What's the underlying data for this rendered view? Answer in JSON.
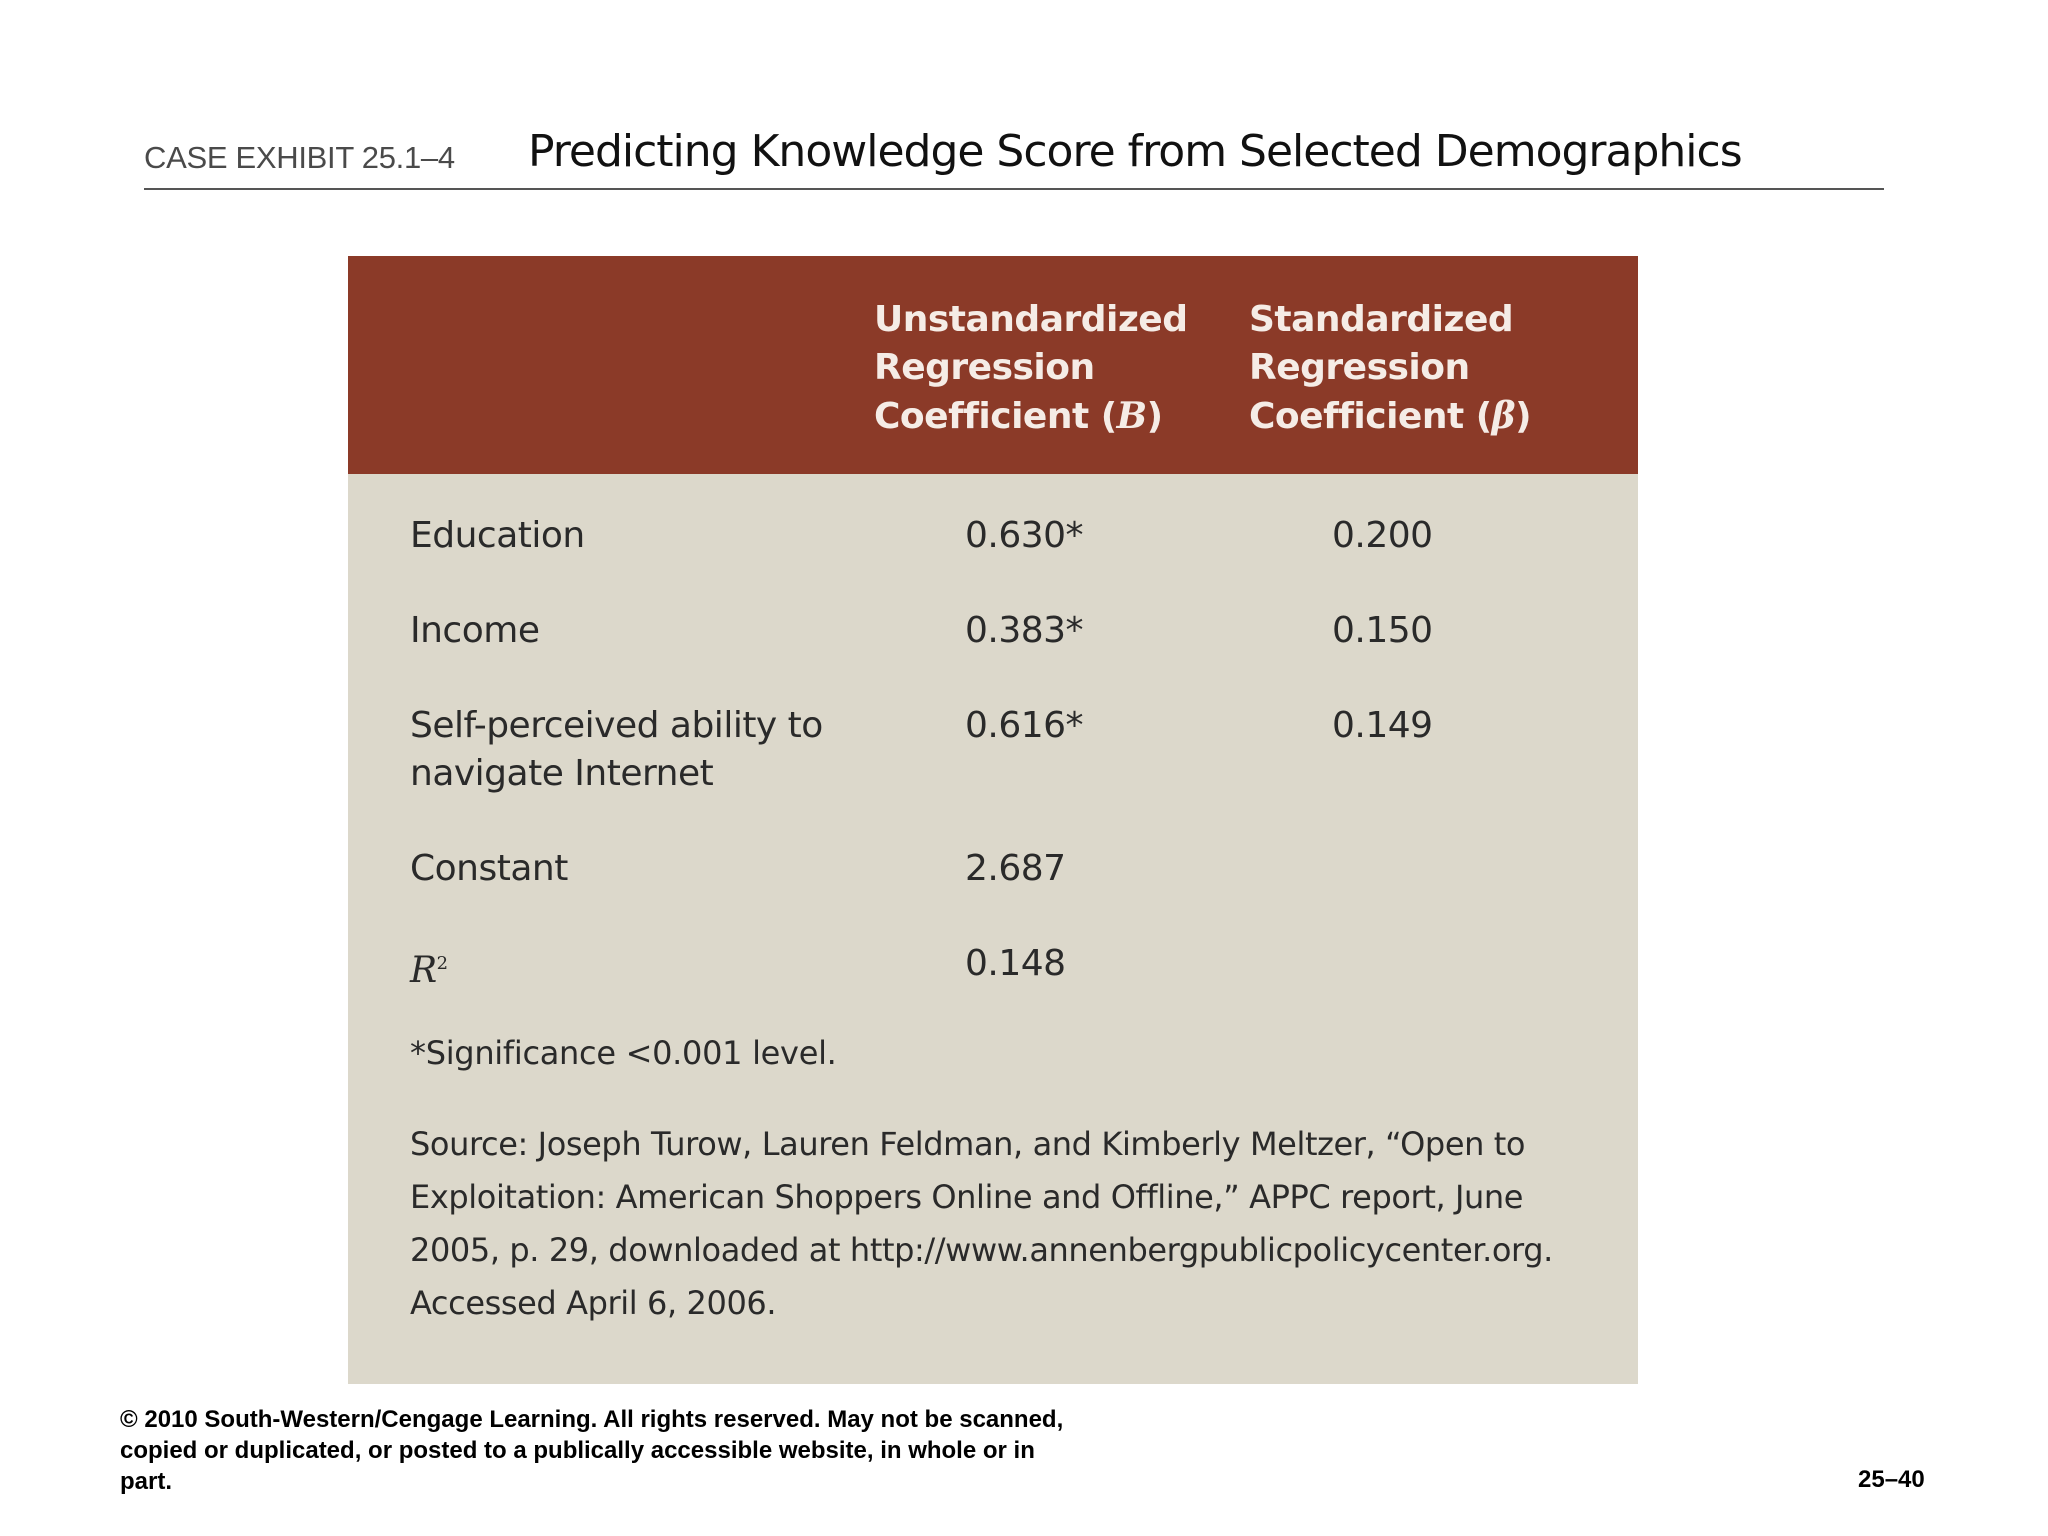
{
  "header": {
    "label": "CASE EXHIBIT 25.1–4",
    "title": "Predicting Knowledge Score from Selected Demographics"
  },
  "table": {
    "columns": {
      "unstandardized": [
        "Unstandardized",
        "Regression",
        "Coefficient (",
        "B",
        ")"
      ],
      "standardized": [
        "Standardized",
        "Regression",
        "Coefficient (",
        "β",
        ")"
      ]
    },
    "rows": [
      {
        "label": [
          "Education"
        ],
        "b": "0.630*",
        "beta": "0.200"
      },
      {
        "label": [
          "Income"
        ],
        "b": "0.383*",
        "beta": "0.150"
      },
      {
        "label": [
          "Self-perceived ability to",
          "navigate Internet"
        ],
        "b": "0.616*",
        "beta": "0.149"
      },
      {
        "label": [
          "Constant"
        ],
        "b": "2.687",
        "beta": ""
      }
    ],
    "r2": {
      "label": "R",
      "sup": "2",
      "b": "0.148"
    },
    "footnote": "*Significance <0.001 level.",
    "source": "Source: Joseph Turow, Lauren Feldman, and Kimberly Meltzer, “Open to Exploitation: American Shoppers Online and Offline,” APPC report, June 2005, p. 29, downloaded at http://www.annenbergpublicpolicycenter.org. Accessed April 6, 2006."
  },
  "footer": {
    "copyright": "© 2010 South-Western/Cengage Learning. All rights reserved. May not be scanned, copied or duplicated, or posted to a publically accessible website, in whole or in part.",
    "page": "25–40"
  }
}
